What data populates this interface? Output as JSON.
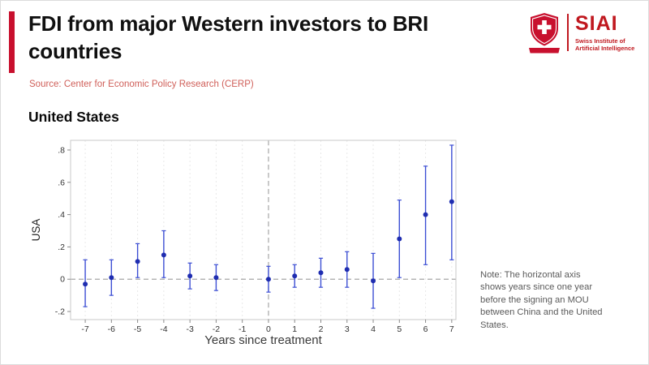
{
  "colors": {
    "accent": "#c8102e",
    "logo_red": "#c0181f",
    "source": "#d0605a",
    "point": "#1f2db0",
    "ci": "#3d4fd4",
    "ref_line": "#a6a6a6",
    "grid": "#e8e8e8",
    "border": "#c9c9c9",
    "tick_text": "#333333",
    "note": "#5a5a5a"
  },
  "header": {
    "title": "FDI from major Western investors to BRI countries",
    "source": "Source: Center for Economic Policy Research (CERP)"
  },
  "logo": {
    "name": "SIAI",
    "subtitle": "Swiss Institute of Artificial Intelligence"
  },
  "section_title": "United States",
  "note": "Note: The horizontal axis shows years since one year before the signing an MOU between China and the United States.",
  "chart_data": {
    "type": "scatter",
    "subtype": "event-study coefficient plot with 95% confidence intervals",
    "title": "United States",
    "xlabel": "Years since treatment",
    "ylabel": "USA",
    "xlim": [
      -7.56,
      7.16
    ],
    "ylim": [
      -0.25,
      0.86
    ],
    "xticks": [
      -7,
      -6,
      -5,
      -4,
      -3,
      -2,
      -1,
      0,
      1,
      2,
      3,
      4,
      5,
      6,
      7
    ],
    "yticks": [
      -0.2,
      0,
      0.2,
      0.4,
      0.6,
      0.8
    ],
    "ytick_labels": [
      "-.2",
      "0",
      ".2",
      ".4",
      ".6",
      ".8"
    ],
    "reference_lines": {
      "horizontal_y": 0,
      "vertical_x": 0
    },
    "omitted_period": -1,
    "legend_position": "none",
    "grid": "light dashed vertical",
    "series": [
      {
        "name": "USA",
        "points": [
          {
            "x": -7,
            "y": -0.03,
            "ci_low": -0.17,
            "ci_high": 0.12
          },
          {
            "x": -6,
            "y": 0.01,
            "ci_low": -0.1,
            "ci_high": 0.12
          },
          {
            "x": -5,
            "y": 0.11,
            "ci_low": 0.01,
            "ci_high": 0.22
          },
          {
            "x": -4,
            "y": 0.15,
            "ci_low": 0.01,
            "ci_high": 0.3
          },
          {
            "x": -3,
            "y": 0.02,
            "ci_low": -0.06,
            "ci_high": 0.1
          },
          {
            "x": -2,
            "y": 0.01,
            "ci_low": -0.07,
            "ci_high": 0.09
          },
          {
            "x": 0,
            "y": 0.0,
            "ci_low": -0.08,
            "ci_high": 0.08
          },
          {
            "x": 1,
            "y": 0.02,
            "ci_low": -0.05,
            "ci_high": 0.09
          },
          {
            "x": 2,
            "y": 0.04,
            "ci_low": -0.05,
            "ci_high": 0.13
          },
          {
            "x": 3,
            "y": 0.06,
            "ci_low": -0.05,
            "ci_high": 0.17
          },
          {
            "x": 4,
            "y": -0.01,
            "ci_low": -0.18,
            "ci_high": 0.16
          },
          {
            "x": 5,
            "y": 0.25,
            "ci_low": 0.01,
            "ci_high": 0.49
          },
          {
            "x": 6,
            "y": 0.4,
            "ci_low": 0.09,
            "ci_high": 0.7
          },
          {
            "x": 7,
            "y": 0.48,
            "ci_low": 0.12,
            "ci_high": 0.83
          }
        ]
      }
    ]
  }
}
